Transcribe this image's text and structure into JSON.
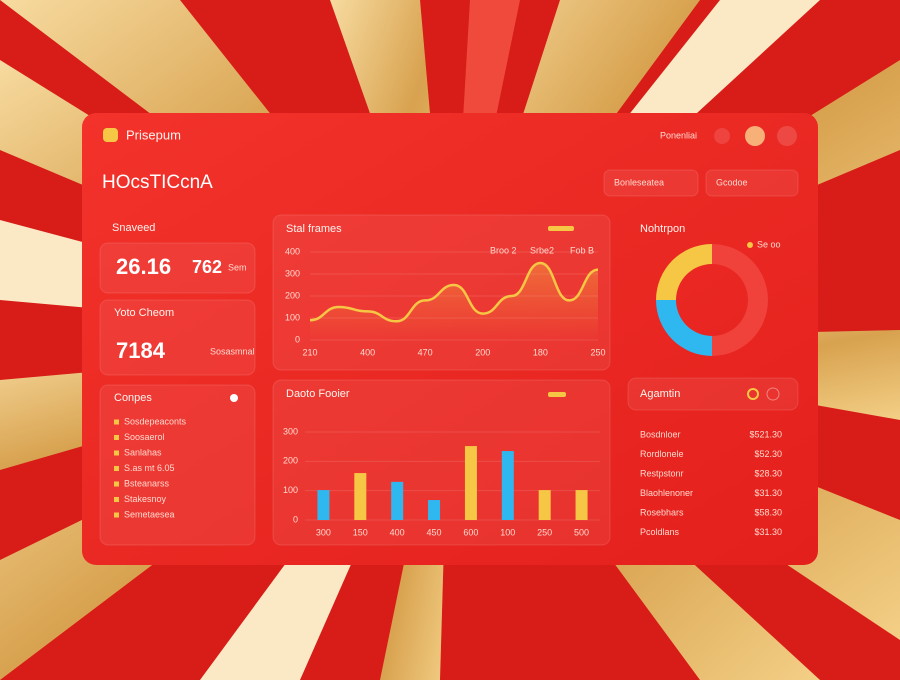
{
  "header": {
    "brand": "Prisepum",
    "title": "HOcsTICcnA",
    "menu": "Ponenliai",
    "search_1": "Bonleseatea",
    "search_2": "Gcodoe"
  },
  "stats": [
    {
      "label": "Snaveed",
      "value": "26.16",
      "value_2": "762",
      "unit": "Sem"
    },
    {
      "label": "Yoto Cheom",
      "value": "7184",
      "note": "Sosasmnal"
    }
  ],
  "legend_panel": {
    "title": "Conpes",
    "items": [
      "Sosdepeaconts",
      "Soosaerol",
      "Sanlahas",
      "S.as mt 6.05",
      "Bsteanarss",
      "Stakesnoy",
      "Semetaesea"
    ]
  },
  "line_chart": {
    "title": "Stal frames",
    "legend": [
      "Broo 2",
      "Srbe2",
      "Fob B"
    ],
    "color": "#f6c744",
    "categories": [
      "210",
      null,
      "400",
      null,
      "470",
      null,
      "200",
      null,
      "180",
      null,
      "250"
    ],
    "values": [
      90,
      150,
      130,
      85,
      180,
      250,
      120,
      200,
      350,
      180,
      320
    ],
    "ylim": [
      0,
      400
    ],
    "yticks": [
      0,
      100,
      200,
      300,
      400
    ]
  },
  "bar_chart": {
    "title": "Daoto Fooier",
    "categories": [
      "300",
      "150",
      "400",
      "450",
      "600",
      "100",
      "250",
      "500"
    ],
    "values": [
      102,
      160,
      130,
      68,
      252,
      235,
      102,
      102
    ],
    "colors": [
      "#2fb8f0",
      "#f6c744",
      "#2fb8f0",
      "#2fb8f0",
      "#f6c744",
      "#2fb8f0",
      "#f6c744",
      "#f6c744"
    ],
    "ylim": [
      0,
      300
    ],
    "yticks": [
      0,
      100,
      200,
      300
    ]
  },
  "donut": {
    "title": "Nohtrpon",
    "legend": "Se oo",
    "values": [
      50,
      25,
      25
    ],
    "colors": [
      "#f0413a",
      "#2fb8f0",
      "#f6c744"
    ]
  },
  "list": {
    "title": "Agamtin",
    "rows": [
      [
        "Bosdnloer",
        "$521.30"
      ],
      [
        "Rordlonele",
        "$52.30"
      ],
      [
        "Restpstonr",
        "$28.30"
      ],
      [
        "Blaohlenoner",
        "$31.30"
      ],
      [
        "Rosebhars",
        "$58.30"
      ],
      [
        "Pcoldlans",
        "$31.30"
      ]
    ]
  }
}
